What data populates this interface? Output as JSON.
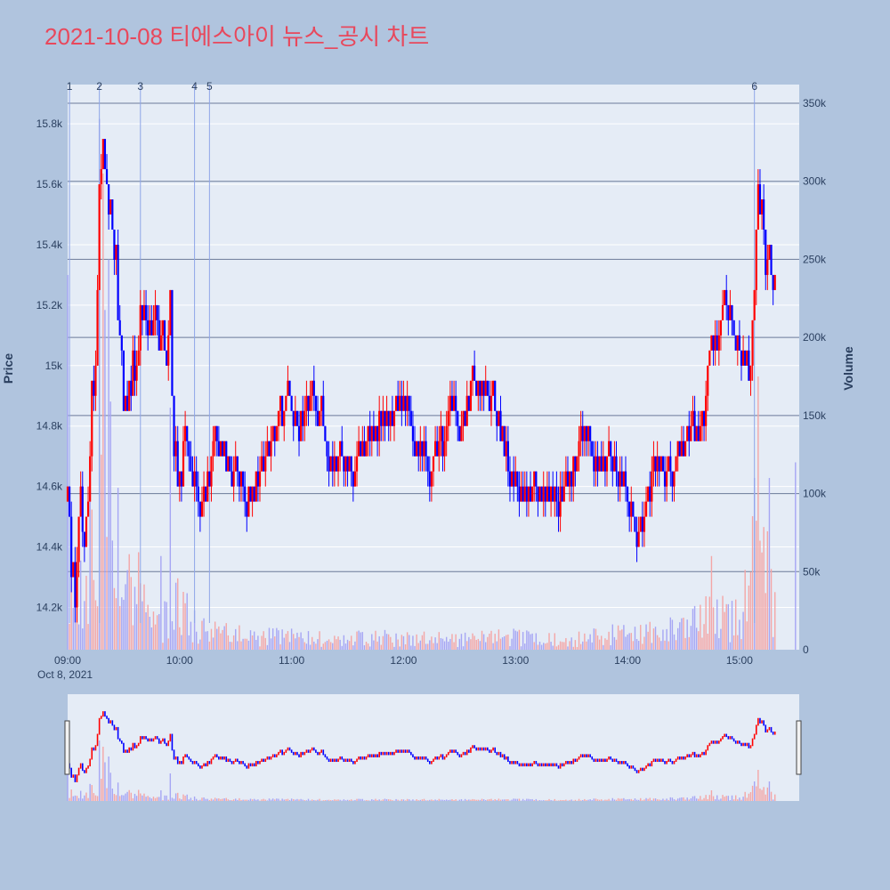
{
  "title": "2021-10-08 티에스아이 뉴스_공시 차트",
  "colors": {
    "page_bg": "#b0c4de",
    "plot_bg": "#e5ecf6",
    "title": "#e8485c",
    "up": "#ff0000",
    "down": "#0000ff",
    "up_volume": "#f4a6a6",
    "down_volume": "#a6a6f4",
    "grid": "#ffffff",
    "ref_line": "#6b7a99",
    "news_line": "#8ea6e8"
  },
  "chart_data": {
    "type": "candlestick",
    "title": "2021-10-08 티에스아이 뉴스_공시 차트",
    "date_label": "Oct 8, 2021",
    "time_range": [
      "09:00",
      "15:30"
    ],
    "x_ticks": [
      "09:00",
      "10:00",
      "11:00",
      "12:00",
      "13:00",
      "14:00",
      "15:00"
    ],
    "price_axis": {
      "label": "Price",
      "range": [
        14060,
        15930
      ],
      "ticks": [
        14200,
        14400,
        14600,
        14800,
        15000,
        15200,
        15400,
        15600,
        15800
      ],
      "tick_labels": [
        "14.2k",
        "14.4k",
        "14.6k",
        "14.8k",
        "15k",
        "15.2k",
        "15.4k",
        "15.6k",
        "15.8k"
      ]
    },
    "volume_axis": {
      "label": "Volume",
      "range": [
        0,
        350000
      ],
      "ticks": [
        0,
        50000,
        100000,
        150000,
        200000,
        250000,
        300000,
        350000
      ],
      "tick_labels": [
        "0",
        "50k",
        "100k",
        "150k",
        "200k",
        "250k",
        "300k",
        "350k"
      ]
    },
    "news_markers": [
      {
        "label": "1",
        "time": "09:01"
      },
      {
        "label": "2",
        "time": "09:17"
      },
      {
        "label": "3",
        "time": "09:39"
      },
      {
        "label": "4",
        "time": "10:08"
      },
      {
        "label": "5",
        "time": "10:16"
      },
      {
        "label": "6",
        "time": "15:08"
      }
    ],
    "price_path": [
      [
        "09:00",
        14550
      ],
      [
        "09:02",
        14350
      ],
      [
        "09:04",
        14200
      ],
      [
        "09:07",
        14600
      ],
      [
        "09:09",
        14400
      ],
      [
        "09:11",
        14500
      ],
      [
        "09:13",
        14900
      ],
      [
        "09:15",
        15000
      ],
      [
        "09:17",
        15600
      ],
      [
        "09:19",
        15750
      ],
      [
        "09:21",
        15600
      ],
      [
        "09:24",
        15450
      ],
      [
        "09:26",
        15300
      ],
      [
        "09:28",
        15100
      ],
      [
        "09:30",
        14900
      ],
      [
        "09:32",
        14850
      ],
      [
        "09:35",
        15000
      ],
      [
        "09:37",
        14950
      ],
      [
        "09:39",
        15150
      ],
      [
        "09:42",
        15200
      ],
      [
        "09:45",
        15100
      ],
      [
        "09:48",
        15200
      ],
      [
        "09:50",
        15050
      ],
      [
        "09:52",
        15100
      ],
      [
        "09:54",
        15050
      ],
      [
        "09:55",
        15200
      ],
      [
        "09:56",
        14900
      ],
      [
        "09:57",
        14700
      ],
      [
        "10:00",
        14650
      ],
      [
        "10:03",
        14750
      ],
      [
        "10:06",
        14700
      ],
      [
        "10:08",
        14650
      ],
      [
        "10:11",
        14550
      ],
      [
        "10:14",
        14600
      ],
      [
        "10:17",
        14700
      ],
      [
        "10:20",
        14750
      ],
      [
        "10:24",
        14700
      ],
      [
        "10:28",
        14650
      ],
      [
        "10:32",
        14600
      ],
      [
        "10:36",
        14550
      ],
      [
        "10:40",
        14600
      ],
      [
        "10:44",
        14700
      ],
      [
        "10:48",
        14750
      ],
      [
        "10:52",
        14800
      ],
      [
        "10:56",
        14850
      ],
      [
        "10:58",
        14950
      ],
      [
        "11:00",
        14850
      ],
      [
        "11:04",
        14800
      ],
      [
        "11:08",
        14850
      ],
      [
        "11:12",
        14900
      ],
      [
        "11:15",
        14850
      ],
      [
        "11:18",
        14800
      ],
      [
        "11:21",
        14700
      ],
      [
        "11:24",
        14650
      ],
      [
        "11:28",
        14700
      ],
      [
        "11:32",
        14650
      ],
      [
        "11:36",
        14700
      ],
      [
        "11:40",
        14750
      ],
      [
        "11:44",
        14800
      ],
      [
        "11:48",
        14850
      ],
      [
        "11:52",
        14800
      ],
      [
        "11:56",
        14850
      ],
      [
        "12:00",
        14900
      ],
      [
        "12:03",
        14850
      ],
      [
        "12:06",
        14750
      ],
      [
        "12:10",
        14700
      ],
      [
        "12:14",
        14650
      ],
      [
        "12:18",
        14700
      ],
      [
        "12:22",
        14750
      ],
      [
        "12:26",
        14900
      ],
      [
        "12:30",
        14800
      ],
      [
        "12:33",
        14850
      ],
      [
        "12:36",
        14950
      ],
      [
        "12:40",
        14900
      ],
      [
        "12:44",
        14950
      ],
      [
        "12:47",
        14900
      ],
      [
        "12:50",
        14800
      ],
      [
        "12:54",
        14700
      ],
      [
        "12:58",
        14650
      ],
      [
        "13:02",
        14600
      ],
      [
        "13:06",
        14550
      ],
      [
        "13:10",
        14600
      ],
      [
        "13:14",
        14550
      ],
      [
        "13:18",
        14600
      ],
      [
        "13:22",
        14550
      ],
      [
        "13:26",
        14600
      ],
      [
        "13:30",
        14650
      ],
      [
        "13:34",
        14700
      ],
      [
        "13:38",
        14800
      ],
      [
        "13:42",
        14700
      ],
      [
        "13:46",
        14650
      ],
      [
        "13:50",
        14700
      ],
      [
        "13:54",
        14650
      ],
      [
        "13:58",
        14600
      ],
      [
        "14:00",
        14550
      ],
      [
        "14:02",
        14500
      ],
      [
        "14:06",
        14450
      ],
      [
        "14:10",
        14550
      ],
      [
        "14:14",
        14650
      ],
      [
        "14:18",
        14700
      ],
      [
        "14:22",
        14650
      ],
      [
        "14:26",
        14700
      ],
      [
        "14:30",
        14750
      ],
      [
        "14:34",
        14800
      ],
      [
        "14:38",
        14750
      ],
      [
        "14:42",
        14900
      ],
      [
        "14:45",
        15100
      ],
      [
        "14:48",
        15050
      ],
      [
        "14:51",
        15200
      ],
      [
        "14:54",
        15150
      ],
      [
        "14:57",
        15150
      ],
      [
        "15:00",
        15050
      ],
      [
        "15:03",
        15000
      ],
      [
        "15:06",
        14950
      ],
      [
        "15:08",
        15250
      ],
      [
        "15:10",
        15600
      ],
      [
        "15:12",
        15500
      ],
      [
        "15:14",
        15300
      ],
      [
        "15:16",
        15400
      ],
      [
        "15:18",
        15300
      ]
    ],
    "volume_profile": [
      [
        "09:00",
        80000
      ],
      [
        "09:05",
        30000
      ],
      [
        "09:10",
        55000
      ],
      [
        "09:15",
        110000
      ],
      [
        "09:19",
        200000
      ],
      [
        "09:22",
        120000
      ],
      [
        "09:26",
        80000
      ],
      [
        "09:30",
        60000
      ],
      [
        "09:35",
        40000
      ],
      [
        "09:40",
        45000
      ],
      [
        "09:45",
        25000
      ],
      [
        "09:50",
        20000
      ],
      [
        "09:55",
        30000
      ],
      [
        "10:00",
        45000
      ],
      [
        "10:05",
        25000
      ],
      [
        "10:10",
        15000
      ],
      [
        "10:20",
        12000
      ],
      [
        "10:40",
        10000
      ],
      [
        "11:00",
        9000
      ],
      [
        "11:30",
        8000
      ],
      [
        "12:00",
        9000
      ],
      [
        "12:30",
        8000
      ],
      [
        "13:00",
        9000
      ],
      [
        "13:30",
        8000
      ],
      [
        "14:00",
        12000
      ],
      [
        "14:30",
        15000
      ],
      [
        "14:45",
        25000
      ],
      [
        "15:00",
        22000
      ],
      [
        "15:05",
        50000
      ],
      [
        "15:10",
        100000
      ],
      [
        "15:14",
        60000
      ],
      [
        "15:18",
        35000
      ]
    ],
    "volume_spikes": [
      [
        "09:00",
        240000
      ],
      [
        "09:17",
        340000
      ],
      [
        "09:19",
        305000
      ],
      [
        "09:22",
        250000
      ],
      [
        "09:50",
        60000
      ],
      [
        "09:55",
        155000
      ],
      [
        "14:45",
        60000
      ],
      [
        "15:08",
        110000
      ],
      [
        "15:10",
        175000
      ],
      [
        "15:16",
        110000
      ],
      [
        "15:30",
        120000
      ]
    ],
    "reference_lines_volume": [
      50000,
      100000,
      150000,
      200000,
      250000,
      300000,
      350000
    ]
  }
}
